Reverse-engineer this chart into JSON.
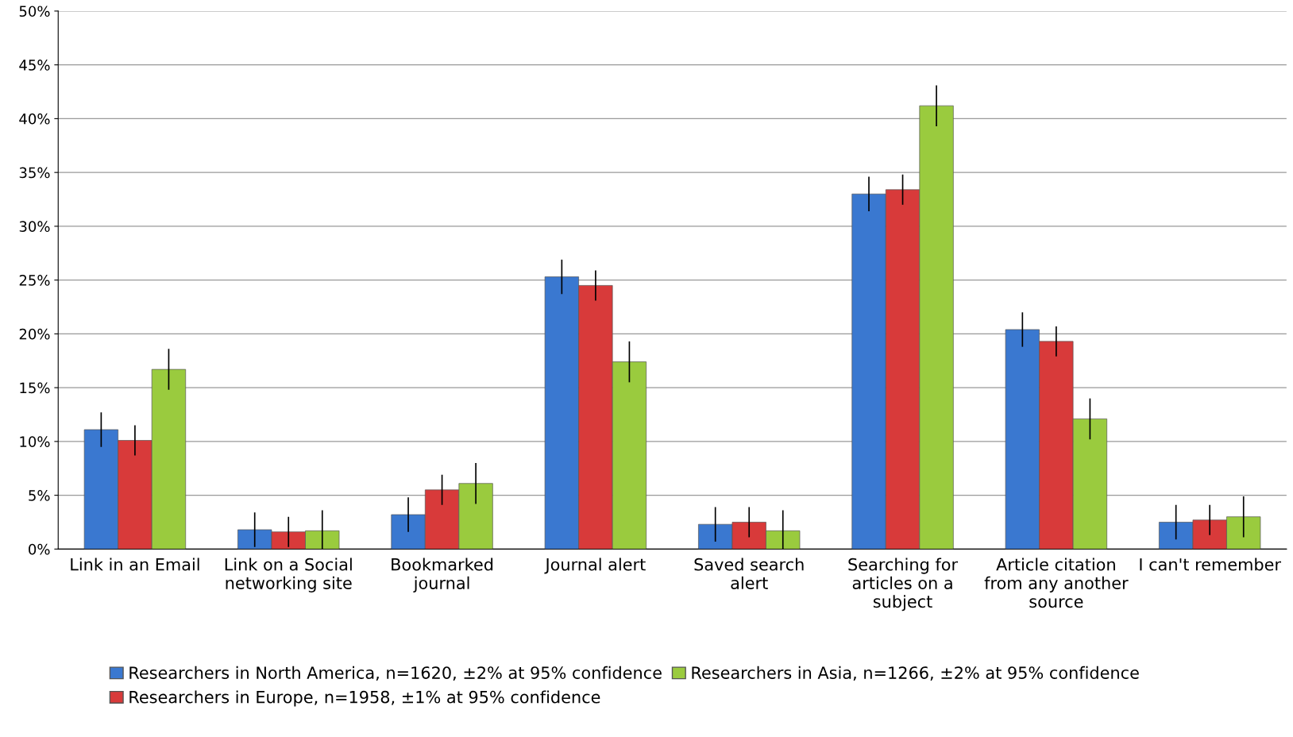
{
  "chart_data": {
    "type": "bar",
    "categories": [
      "Link in an Email",
      "Link on a Social\nnetworking site",
      "Bookmarked\njournal",
      "Journal alert",
      "Saved search\nalert",
      "Searching for\narticles on a\nsubject",
      "Article citation\nfrom any another\nsource",
      "I can't remember"
    ],
    "series": [
      {
        "name": "Researchers in North America, n=1620, ±2% at 95% confidence",
        "color": "#3a78d0",
        "values": [
          11.1,
          1.8,
          3.2,
          25.3,
          2.3,
          33.0,
          20.4,
          2.5
        ],
        "errors": [
          1.6,
          1.6,
          1.6,
          1.6,
          1.6,
          1.6,
          1.6,
          1.6
        ]
      },
      {
        "name": "Researchers in Europe, n=1958, ±1% at 95% confidence",
        "color": "#d83a3a",
        "values": [
          10.1,
          1.6,
          5.5,
          24.5,
          2.5,
          33.4,
          19.3,
          2.7
        ],
        "errors": [
          1.4,
          1.4,
          1.4,
          1.4,
          1.4,
          1.4,
          1.4,
          1.4
        ]
      },
      {
        "name": "Researchers in Asia, n=1266, ±2% at 95% confidence",
        "color": "#9acb3e",
        "values": [
          16.7,
          1.7,
          6.1,
          17.4,
          1.7,
          41.2,
          12.1,
          3.0
        ],
        "errors": [
          1.9,
          1.9,
          1.9,
          1.9,
          1.9,
          1.9,
          1.9,
          1.9
        ]
      }
    ],
    "ylim": [
      0,
      50
    ],
    "yticks": [
      {
        "value": 0,
        "label": "0%"
      },
      {
        "value": 5,
        "label": "5%"
      },
      {
        "value": 10,
        "label": "10%"
      },
      {
        "value": 15,
        "label": "15%"
      },
      {
        "value": 20,
        "label": "20%"
      },
      {
        "value": 25,
        "label": "25%"
      },
      {
        "value": 30,
        "label": "30%"
      },
      {
        "value": 35,
        "label": "35%"
      },
      {
        "value": 40,
        "label": "40%"
      },
      {
        "value": 45,
        "label": "45%"
      },
      {
        "value": 50,
        "label": "50%"
      }
    ],
    "grid": "y",
    "legend": "bottom"
  }
}
